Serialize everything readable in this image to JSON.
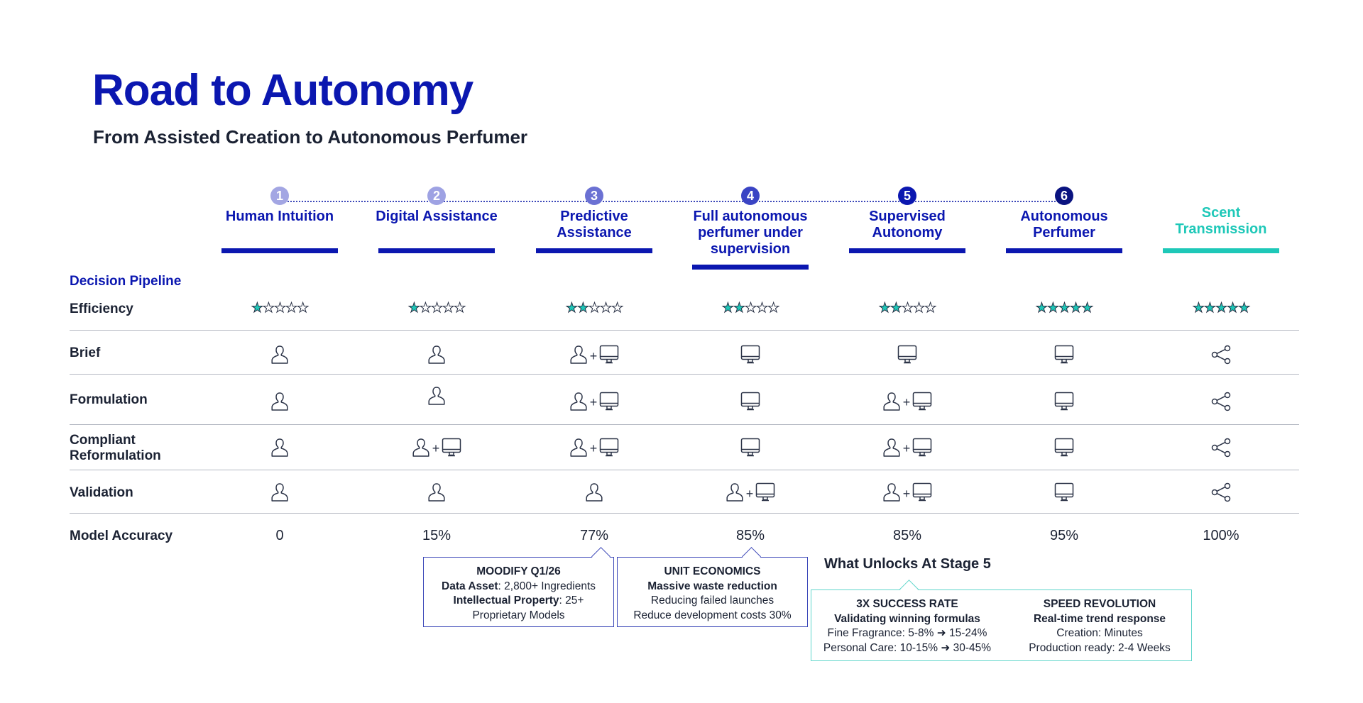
{
  "title": "Road to Autonomy",
  "subtitle": "From Assisted Creation to Autonomous Perfumer",
  "colors": {
    "primary": "#0b17b0",
    "accent": "#1ec8b8",
    "text": "#1b2233"
  },
  "stages": [
    {
      "num": "1",
      "title": "Human Intuition",
      "color": "#a3a6e3"
    },
    {
      "num": "2",
      "title": "Digital Assistance",
      "color": "#9ea2e3"
    },
    {
      "num": "3",
      "title": "Predictive Assistance",
      "color": "#6b71d3"
    },
    {
      "num": "4",
      "title": "Full autonomous perfumer under supervision",
      "color": "#3a44c4"
    },
    {
      "num": "5",
      "title": "Supervised Autonomy",
      "color": "#0b17b0"
    },
    {
      "num": "6",
      "title": "Autonomous Perfumer",
      "color": "#0a1380"
    },
    {
      "num": "",
      "title": "Scent Transmission",
      "color": "#1ec8b8"
    }
  ],
  "section_label": "Decision Pipeline",
  "efficiency": {
    "label": "Efficiency",
    "max": 5,
    "ratings": [
      1,
      1,
      2,
      2,
      2,
      5,
      5
    ]
  },
  "rows": [
    {
      "label": "Brief",
      "cells": [
        "human-icon",
        "human-icon",
        "human-plus-monitor",
        "monitor-icon",
        "monitor-icon",
        "monitor-icon",
        "share-icon"
      ]
    },
    {
      "label": "Formulation",
      "cells": [
        "human-icon",
        "human-icon",
        "human-plus-monitor",
        "monitor-icon",
        "human-plus-monitor",
        "monitor-icon",
        "share-icon"
      ]
    },
    {
      "label": "Compliant Reformulation",
      "cells": [
        "human-icon",
        "human-plus-monitor",
        "human-plus-monitor",
        "monitor-icon",
        "human-plus-monitor",
        "monitor-icon",
        "share-icon"
      ]
    },
    {
      "label": "Validation",
      "cells": [
        "human-icon",
        "human-icon",
        "human-icon",
        "human-plus-monitor",
        "human-plus-monitor",
        "monitor-icon",
        "share-icon"
      ]
    }
  ],
  "accuracy": {
    "label": "Model Accuracy",
    "values": [
      "0",
      "15%",
      "77%",
      "85%",
      "85%",
      "95%",
      "100%"
    ]
  },
  "callouts": {
    "moodify": {
      "title": "MOODIFY Q1/26",
      "l1a": "Data Asset",
      "l1b": ": 2,800+ Ingredients",
      "l2a": "Intellectual Property",
      "l2b": ": 25+",
      "l3": "Proprietary Models"
    },
    "unit": {
      "title": "UNIT ECONOMICS",
      "l1": "Massive waste reduction",
      "l2": "Reducing failed launches",
      "l3": "Reduce development costs 30%"
    },
    "stage5": {
      "heading": "What Unlocks At Stage 5",
      "left": {
        "title": "3X SUCCESS RATE",
        "l1": "Validating winning formulas",
        "l2": "Fine Fragrance: 5-8% ➜ 15-24%",
        "l3": "Personal Care: 10-15% ➜ 30-45%"
      },
      "right": {
        "title": "SPEED REVOLUTION",
        "l1": "Real-time trend response",
        "l2": "Creation: Minutes",
        "l3": "Production ready: 2-4 Weeks"
      }
    }
  }
}
